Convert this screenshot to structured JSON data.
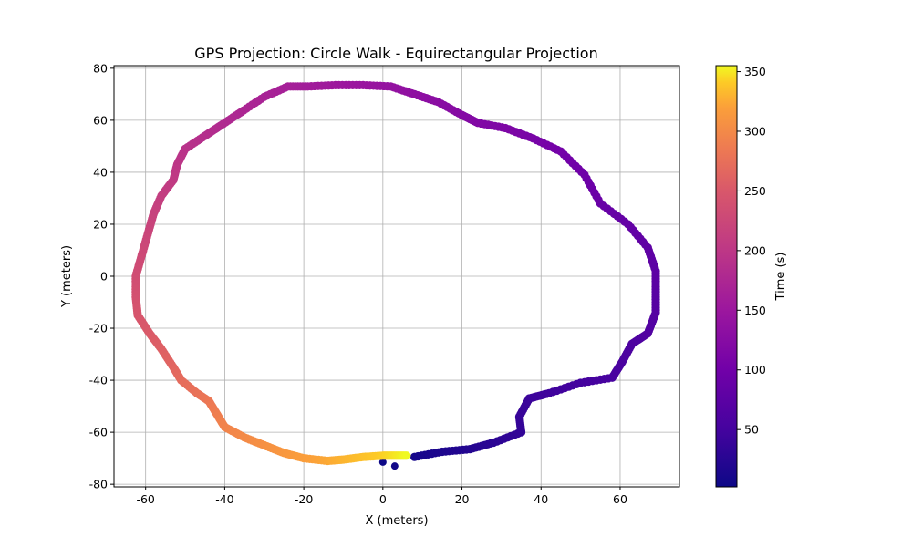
{
  "chart_data": {
    "type": "scatter",
    "title": "GPS Projection: Circle Walk - Equirectangular Projection",
    "xlabel": "X (meters)",
    "ylabel": "Y (meters)",
    "xlim": [
      -68,
      75
    ],
    "ylim": [
      -81,
      81
    ],
    "xticks": [
      -60,
      -40,
      -20,
      0,
      20,
      40,
      60
    ],
    "yticks": [
      -80,
      -60,
      -40,
      -20,
      0,
      20,
      40,
      60,
      80
    ],
    "grid": true,
    "colormap": "plasma",
    "colorbar": {
      "label": "Time (s)",
      "range": [
        2,
        355
      ],
      "ticks": [
        50,
        100,
        150,
        200,
        250,
        300,
        350
      ]
    },
    "path": [
      {
        "t": 2,
        "x": 0,
        "y": -71.5
      },
      {
        "t": 6,
        "x": 3,
        "y": -73
      },
      {
        "t": 10,
        "x": 8,
        "y": -69.5
      },
      {
        "t": 16,
        "x": 15,
        "y": -67.5
      },
      {
        "t": 22,
        "x": 22,
        "y": -66.5
      },
      {
        "t": 28,
        "x": 28,
        "y": -64
      },
      {
        "t": 34,
        "x": 35,
        "y": -60
      },
      {
        "t": 38,
        "x": 34.5,
        "y": -54
      },
      {
        "t": 42,
        "x": 37,
        "y": -47
      },
      {
        "t": 46,
        "x": 42,
        "y": -45
      },
      {
        "t": 50,
        "x": 50,
        "y": -41
      },
      {
        "t": 54,
        "x": 58,
        "y": -39
      },
      {
        "t": 57,
        "x": 60.5,
        "y": -33
      },
      {
        "t": 60,
        "x": 63,
        "y": -26
      },
      {
        "t": 64,
        "x": 67,
        "y": -22
      },
      {
        "t": 68,
        "x": 69,
        "y": -14
      },
      {
        "t": 72,
        "x": 69,
        "y": -6
      },
      {
        "t": 76,
        "x": 69,
        "y": 2
      },
      {
        "t": 80,
        "x": 67,
        "y": 11
      },
      {
        "t": 84,
        "x": 62,
        "y": 20
      },
      {
        "t": 90,
        "x": 55,
        "y": 28
      },
      {
        "t": 96,
        "x": 51,
        "y": 39
      },
      {
        "t": 102,
        "x": 45,
        "y": 48
      },
      {
        "t": 108,
        "x": 38,
        "y": 53
      },
      {
        "t": 114,
        "x": 31,
        "y": 57
      },
      {
        "t": 118,
        "x": 24,
        "y": 59
      },
      {
        "t": 122,
        "x": 20,
        "y": 62
      },
      {
        "t": 128,
        "x": 14,
        "y": 67
      },
      {
        "t": 134,
        "x": 8,
        "y": 70
      },
      {
        "t": 140,
        "x": 2,
        "y": 73
      },
      {
        "t": 146,
        "x": -5,
        "y": 73.5
      },
      {
        "t": 152,
        "x": -12,
        "y": 73.5
      },
      {
        "t": 158,
        "x": -19,
        "y": 73
      },
      {
        "t": 163,
        "x": -24,
        "y": 73
      },
      {
        "t": 168,
        "x": -30,
        "y": 69
      },
      {
        "t": 174,
        "x": -36,
        "y": 63
      },
      {
        "t": 180,
        "x": -41,
        "y": 58
      },
      {
        "t": 186,
        "x": -45,
        "y": 54
      },
      {
        "t": 192,
        "x": -50,
        "y": 49
      },
      {
        "t": 198,
        "x": -52,
        "y": 43
      },
      {
        "t": 204,
        "x": -53,
        "y": 37
      },
      {
        "t": 210,
        "x": -56,
        "y": 31
      },
      {
        "t": 216,
        "x": -58,
        "y": 24
      },
      {
        "t": 222,
        "x": -59.5,
        "y": 16
      },
      {
        "t": 228,
        "x": -61,
        "y": 8
      },
      {
        "t": 234,
        "x": -62.5,
        "y": 0
      },
      {
        "t": 240,
        "x": -62.5,
        "y": -8
      },
      {
        "t": 246,
        "x": -62,
        "y": -15
      },
      {
        "t": 252,
        "x": -59,
        "y": -22
      },
      {
        "t": 258,
        "x": -56,
        "y": -28
      },
      {
        "t": 264,
        "x": -53,
        "y": -35
      },
      {
        "t": 270,
        "x": -51,
        "y": -40
      },
      {
        "t": 276,
        "x": -47,
        "y": -45
      },
      {
        "t": 282,
        "x": -44,
        "y": -48
      },
      {
        "t": 288,
        "x": -42,
        "y": -53
      },
      {
        "t": 294,
        "x": -40,
        "y": -58
      },
      {
        "t": 300,
        "x": -35,
        "y": -62
      },
      {
        "t": 306,
        "x": -30,
        "y": -65
      },
      {
        "t": 312,
        "x": -25,
        "y": -68
      },
      {
        "t": 318,
        "x": -20,
        "y": -70
      },
      {
        "t": 324,
        "x": -14,
        "y": -71
      },
      {
        "t": 330,
        "x": -10,
        "y": -70.5
      },
      {
        "t": 336,
        "x": -5,
        "y": -69.5
      },
      {
        "t": 342,
        "x": 0,
        "y": -69
      },
      {
        "t": 348,
        "x": 3,
        "y": -69
      },
      {
        "t": 355,
        "x": 6,
        "y": -69
      }
    ]
  }
}
